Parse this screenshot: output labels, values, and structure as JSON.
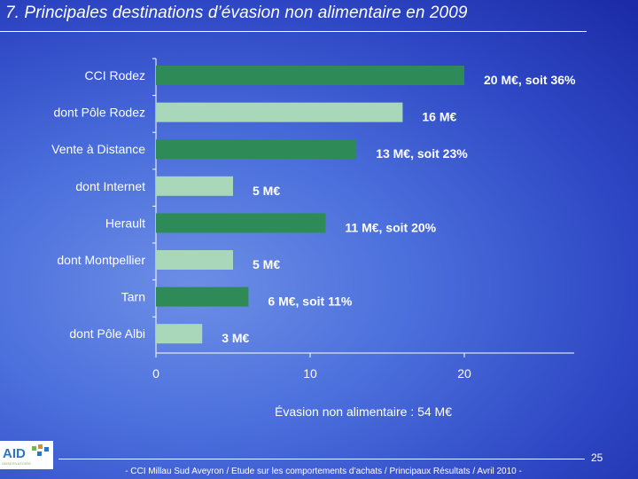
{
  "slide": {
    "title": "7. Principales destinations d’évasion non alimentaire en 2009",
    "subtitle": "Évasion non alimentaire : 54 M€",
    "footer": "- CCI Millau Sud Aveyron /  Etude sur les comportements d’achats / Principaux Résultats / Avril 2010 -",
    "page_number": "25",
    "logo_text": "AID",
    "logo_subtext": "OBSERVATOIRE"
  },
  "chart_data": {
    "type": "bar",
    "orientation": "horizontal",
    "categories": [
      "CCI Rodez",
      "dont Pôle Rodez",
      "Vente à Distance",
      "dont Internet",
      "Herault",
      "dont Montpellier",
      "Tarn",
      "dont Pôle Albi"
    ],
    "values": [
      20,
      16,
      13,
      5,
      11,
      5,
      6,
      3
    ],
    "data_labels": [
      "20 M€, soit 36%",
      "16 M€",
      "13 M€, soit 23%",
      "5 M€",
      "11 M€, soit 20%",
      "5 M€",
      "6 M€, soit 11%",
      "3  M€"
    ],
    "bar_colors": [
      "#2e8b57",
      "#a8d8b9",
      "#2e8b57",
      "#a8d8b9",
      "#2e8b57",
      "#a8d8b9",
      "#2e8b57",
      "#a8d8b9"
    ],
    "xlim": [
      0,
      27
    ],
    "x_ticks": [
      "0",
      "10",
      "20"
    ],
    "xlabel": "",
    "ylabel": ""
  }
}
